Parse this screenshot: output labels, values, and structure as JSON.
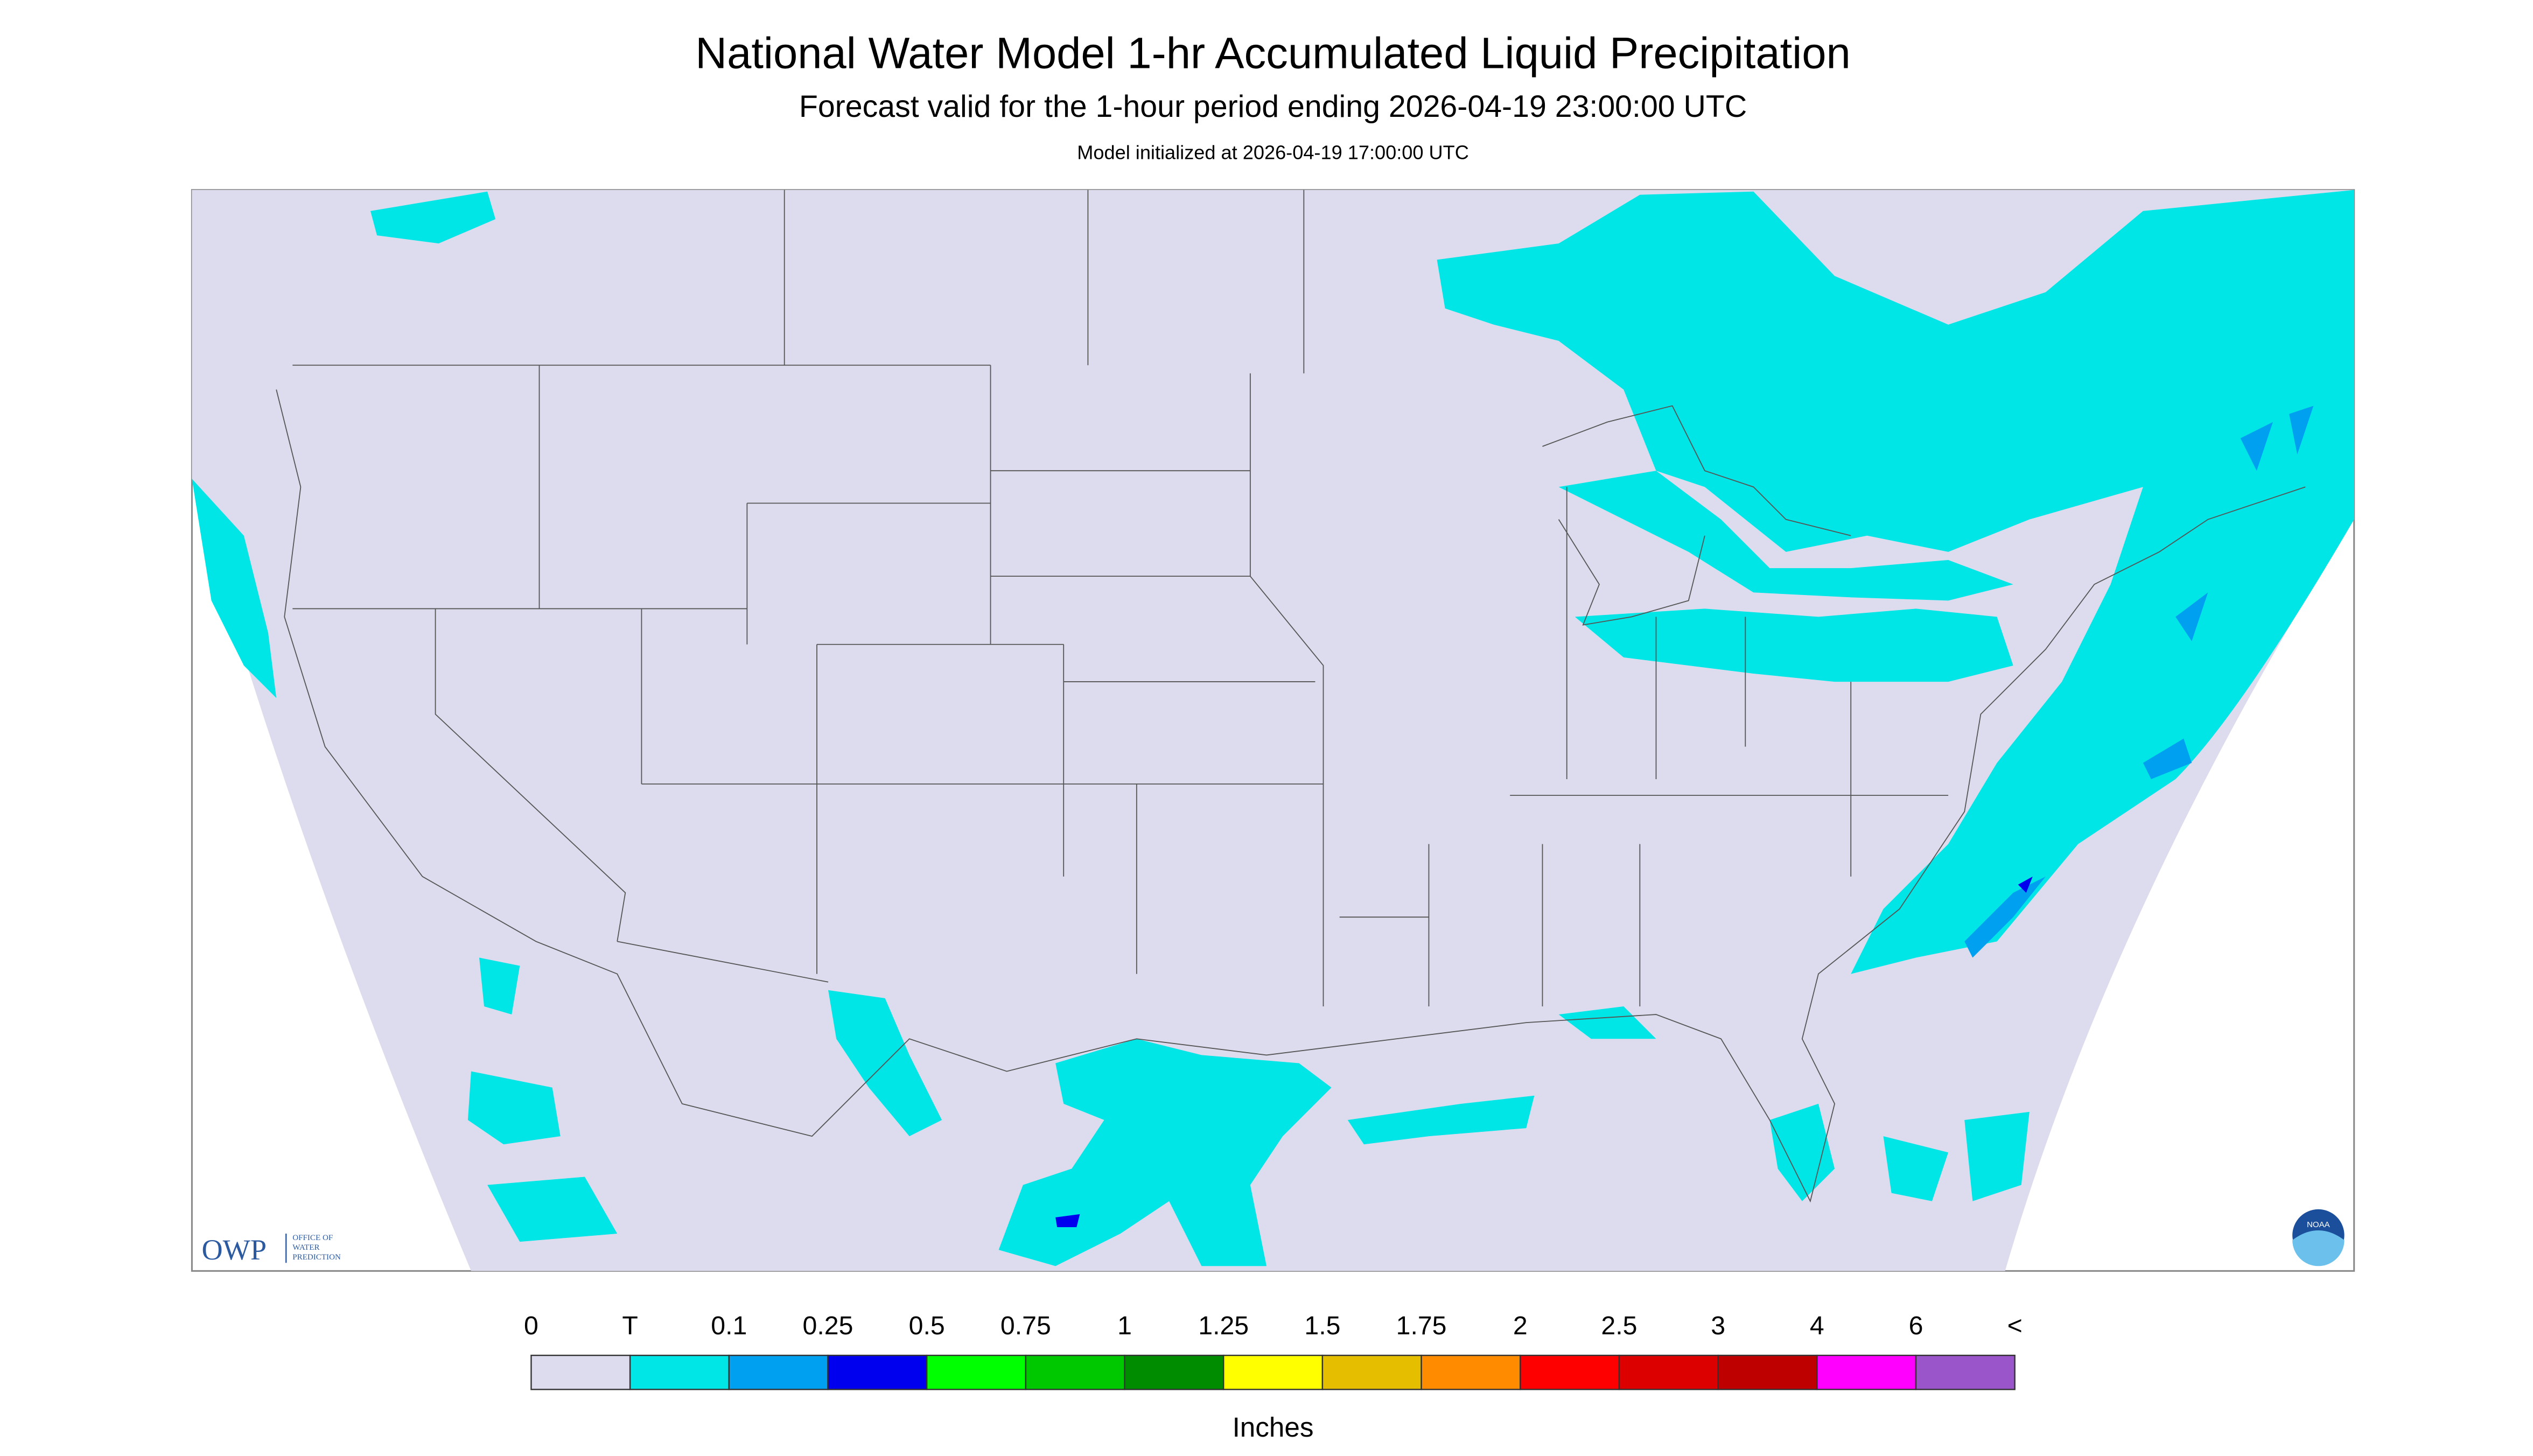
{
  "header": {
    "title": "National Water Model 1-hr Accumulated Liquid Precipitation",
    "subtitle": "Forecast valid for the 1-hour period ending 2026-04-19 23:00:00 UTC",
    "initialized": "Model initialized at 2026-04-19 17:00:00 UTC"
  },
  "legend": {
    "labels": [
      "0",
      "T",
      "0.1",
      "0.25",
      "0.5",
      "0.75",
      "1",
      "1.25",
      "1.5",
      "1.75",
      "2",
      "2.5",
      "3",
      "4",
      "6",
      "<"
    ],
    "colors": [
      "#dcdcee",
      "#00e5e5",
      "#00a0f0",
      "#0000ee",
      "#00ff00",
      "#00c800",
      "#008c00",
      "#ffff00",
      "#e6be00",
      "#ff8c00",
      "#ff0000",
      "#dc0000",
      "#be0000",
      "#ff00ff",
      "#9955c9"
    ],
    "unit": "Inches"
  },
  "logos": {
    "owp": "OWP",
    "owp_text": [
      "OFFICE OF",
      "WATER",
      "PREDICTION"
    ],
    "noaa": "NOAA"
  }
}
